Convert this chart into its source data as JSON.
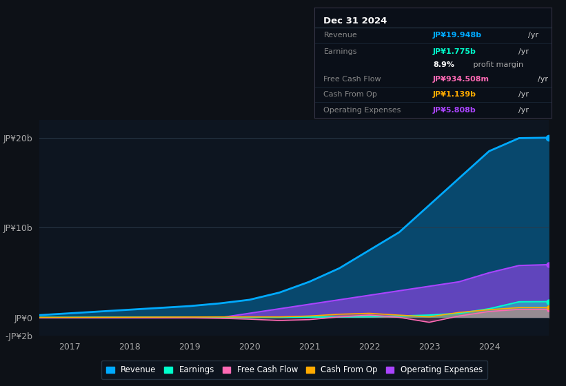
{
  "background_color": "#0d1117",
  "chart_bg": "#0d1520",
  "grid_color": "#1e2d3d",
  "years": [
    2016.5,
    2017,
    2017.5,
    2018,
    2018.5,
    2019,
    2019.5,
    2020,
    2020.5,
    2021,
    2021.5,
    2022,
    2022.5,
    2023,
    2023.5,
    2024,
    2024.5,
    2025.0
  ],
  "revenue": [
    0.3,
    0.5,
    0.7,
    0.9,
    1.1,
    1.3,
    1.6,
    2.0,
    2.8,
    4.0,
    5.5,
    7.5,
    9.5,
    12.5,
    15.5,
    18.5,
    19.948,
    20.0
  ],
  "earnings": [
    0.05,
    0.05,
    0.06,
    0.06,
    0.07,
    0.07,
    0.07,
    0.05,
    0.05,
    0.08,
    0.1,
    0.12,
    0.2,
    0.3,
    0.5,
    1.0,
    1.775,
    1.8
  ],
  "free_cash_flow": [
    0.0,
    0.01,
    0.01,
    0.01,
    0.0,
    0.0,
    -0.05,
    -0.15,
    -0.3,
    -0.2,
    0.1,
    0.3,
    0.05,
    -0.5,
    0.2,
    0.7,
    0.934,
    0.95
  ],
  "cash_from_op": [
    0.05,
    0.05,
    0.06,
    0.07,
    0.08,
    0.09,
    0.1,
    0.1,
    0.1,
    0.2,
    0.4,
    0.5,
    0.3,
    0.1,
    0.6,
    0.9,
    1.139,
    1.15
  ],
  "operating_expenses": [
    0.0,
    0.0,
    0.0,
    0.0,
    0.0,
    0.0,
    0.0,
    0.5,
    1.0,
    1.5,
    2.0,
    2.5,
    3.0,
    3.5,
    4.0,
    5.0,
    5.808,
    5.9
  ],
  "revenue_color": "#00aaff",
  "earnings_color": "#00ffcc",
  "free_cash_flow_color": "#ff69b4",
  "cash_from_op_color": "#ffaa00",
  "operating_expenses_color": "#aa44ff",
  "ylim": [
    -2,
    22
  ],
  "yticks": [
    -2,
    0,
    10,
    20
  ],
  "ytick_labels": [
    "-JP¥2b",
    "JP¥0",
    "JP¥10b",
    "JP¥20b"
  ],
  "xlabel_years": [
    2017,
    2018,
    2019,
    2020,
    2021,
    2022,
    2023,
    2024
  ],
  "info_box": {
    "title": "Dec 31 2024",
    "rows": [
      {
        "label": "Revenue",
        "value": "JP¥19.948b",
        "value_color": "#00aaff",
        "unit": "/yr"
      },
      {
        "label": "Earnings",
        "value": "JP¥1.775b",
        "value_color": "#00ffcc",
        "unit": "/yr"
      },
      {
        "label": "",
        "value": "8.9%",
        "value_color": "#ffffff",
        "unit": " profit margin",
        "unit_color": "#aaaaaa"
      },
      {
        "label": "Free Cash Flow",
        "value": "JP¥934.508m",
        "value_color": "#ff69b4",
        "unit": "/yr"
      },
      {
        "label": "Cash From Op",
        "value": "JP¥1.139b",
        "value_color": "#ffaa00",
        "unit": "/yr"
      },
      {
        "label": "Operating Expenses",
        "value": "JP¥5.808b",
        "value_color": "#aa44ff",
        "unit": "/yr"
      }
    ]
  },
  "legend": [
    {
      "label": "Revenue",
      "color": "#00aaff"
    },
    {
      "label": "Earnings",
      "color": "#00ffcc"
    },
    {
      "label": "Free Cash Flow",
      "color": "#ff69b4"
    },
    {
      "label": "Cash From Op",
      "color": "#ffaa00"
    },
    {
      "label": "Operating Expenses",
      "color": "#aa44ff"
    }
  ]
}
